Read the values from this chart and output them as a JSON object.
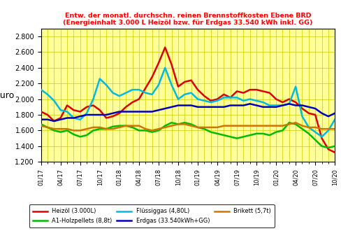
{
  "title_line1": "Entw. der monatl. durchschn. reinen Brennstoffkosten Ebene BRD",
  "title_line2": "(Energieinhalt 3.000 L Heizöl bzw. für Erdgas 33.540 kWh inkl. GG)",
  "ylabel": "Euro",
  "ylim": [
    1.2,
    2.9
  ],
  "yticks": [
    1.2,
    1.4,
    1.6,
    1.8,
    2.0,
    2.2,
    2.4,
    2.6,
    2.8
  ],
  "background_color": "#ffff99",
  "grid_color": "#cccc00",
  "legend_labels": [
    "Heizöl (3.000L)",
    "A1-Holzpellets (8,8t)",
    "Flüssiggas (4,80L)",
    "Erdgas (33.540kWh+GG)",
    "Brikett (5,7t)"
  ],
  "colors": [
    "#dd0000",
    "#00bb00",
    "#00bbdd",
    "#0000bb",
    "#cc7700"
  ],
  "heizoel": [
    1.84,
    1.8,
    1.72,
    1.76,
    1.92,
    1.86,
    1.84,
    1.9,
    1.92,
    1.86,
    1.76,
    1.78,
    1.82,
    1.9,
    1.96,
    2.0,
    2.14,
    2.28,
    2.46,
    2.66,
    2.44,
    2.16,
    2.22,
    2.24,
    2.12,
    2.04,
    1.98,
    2.0,
    2.06,
    2.02,
    2.1,
    2.08,
    2.12,
    2.12,
    2.1,
    2.08,
    2.0,
    1.96,
    2.0,
    1.96,
    1.88,
    1.82,
    1.8,
    1.5,
    1.36,
    1.32
  ],
  "pellets": [
    1.68,
    1.64,
    1.6,
    1.58,
    1.6,
    1.55,
    1.52,
    1.54,
    1.6,
    1.62,
    1.62,
    1.65,
    1.66,
    1.66,
    1.64,
    1.6,
    1.6,
    1.58,
    1.6,
    1.66,
    1.7,
    1.68,
    1.7,
    1.68,
    1.64,
    1.62,
    1.58,
    1.56,
    1.54,
    1.52,
    1.5,
    1.52,
    1.54,
    1.56,
    1.56,
    1.54,
    1.58,
    1.6,
    1.7,
    1.68,
    1.62,
    1.56,
    1.48,
    1.4,
    1.38,
    1.4
  ],
  "fluessiggas": [
    2.12,
    2.06,
    1.98,
    1.86,
    1.84,
    1.76,
    1.74,
    1.82,
    2.0,
    2.26,
    2.18,
    2.08,
    2.04,
    2.08,
    2.12,
    2.12,
    2.08,
    2.06,
    2.18,
    2.4,
    2.18,
    2.0,
    2.06,
    2.08,
    2.0,
    1.98,
    1.96,
    1.98,
    2.02,
    2.02,
    2.02,
    1.98,
    2.0,
    1.98,
    1.96,
    1.92,
    1.92,
    1.92,
    1.94,
    2.16,
    1.78,
    1.64,
    1.58,
    1.52,
    1.6,
    1.74
  ],
  "erdgas": [
    1.74,
    1.74,
    1.72,
    1.74,
    1.76,
    1.76,
    1.78,
    1.8,
    1.8,
    1.8,
    1.8,
    1.82,
    1.84,
    1.84,
    1.84,
    1.84,
    1.84,
    1.84,
    1.86,
    1.88,
    1.9,
    1.92,
    1.92,
    1.92,
    1.9,
    1.9,
    1.9,
    1.9,
    1.9,
    1.92,
    1.92,
    1.92,
    1.94,
    1.92,
    1.9,
    1.9,
    1.9,
    1.92,
    1.94,
    1.92,
    1.92,
    1.9,
    1.88,
    1.82,
    1.78,
    1.82
  ],
  "brikett": [
    1.66,
    1.64,
    1.62,
    1.62,
    1.62,
    1.6,
    1.6,
    1.62,
    1.64,
    1.64,
    1.62,
    1.62,
    1.64,
    1.66,
    1.66,
    1.66,
    1.62,
    1.6,
    1.62,
    1.64,
    1.66,
    1.68,
    1.68,
    1.66,
    1.64,
    1.64,
    1.64,
    1.64,
    1.66,
    1.66,
    1.66,
    1.66,
    1.66,
    1.66,
    1.66,
    1.66,
    1.66,
    1.66,
    1.68,
    1.7,
    1.66,
    1.64,
    1.64,
    1.62,
    1.62,
    1.62
  ]
}
